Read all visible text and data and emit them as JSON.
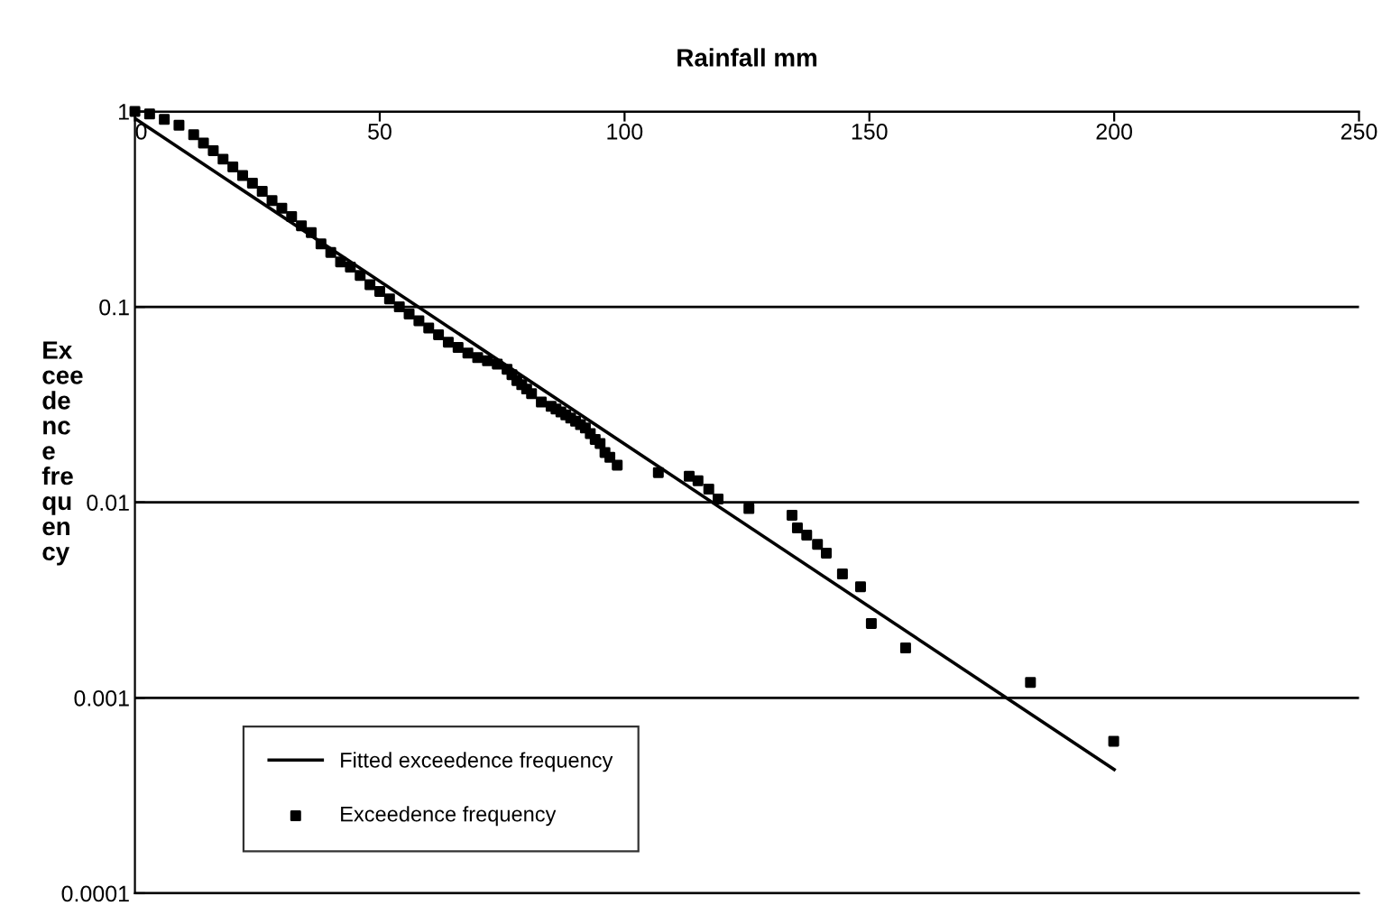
{
  "chart_data": {
    "type": "scatter",
    "xlabel": "Rainfall mm",
    "ylabel": "Ex\ncee\nde\nnc\ne\nfre\nqu\nen\ncy",
    "log": "y",
    "xlim": [
      0,
      250
    ],
    "xticks": [
      0,
      50,
      100,
      150,
      200,
      250
    ],
    "ylim": [
      0.0001,
      1
    ],
    "yticks": [
      0.0001,
      0.001,
      0.01,
      0.1,
      1
    ],
    "grid": "y",
    "legend": "bottom left",
    "series": [
      {
        "name": "Fitted exceedence frequency",
        "type": "line",
        "color": "#000000",
        "marker": "none",
        "line_style": "solid",
        "x": [
          0,
          200
        ],
        "values": [
          0.92,
          0.00043
        ]
      },
      {
        "name": "Exceedence frequency",
        "color": "#000000",
        "marker": "square",
        "x": [
          0,
          3,
          6,
          9,
          12,
          14,
          16,
          18,
          20,
          22,
          24,
          26,
          28,
          30,
          32,
          34,
          36,
          38,
          40,
          42,
          44,
          46,
          48,
          50,
          52,
          54,
          56,
          58,
          60,
          62,
          64,
          66,
          68,
          70,
          72,
          74,
          76,
          77,
          78,
          79,
          80,
          81,
          83,
          85,
          86,
          87,
          88,
          89,
          90,
          91,
          92,
          93,
          94,
          95,
          96,
          97,
          98.5,
          106.9,
          113.2,
          115,
          117.2,
          119.1,
          125.4,
          134.2,
          135.3,
          137.2,
          139.4,
          141.2,
          144.5,
          148.2,
          150.4,
          157.4,
          182.9,
          199.9
        ],
        "values": [
          1,
          0.97,
          0.91,
          0.85,
          0.76,
          0.69,
          0.63,
          0.57,
          0.52,
          0.47,
          0.43,
          0.39,
          0.35,
          0.32,
          0.29,
          0.26,
          0.24,
          0.21,
          0.19,
          0.17,
          0.16,
          0.145,
          0.13,
          0.12,
          0.11,
          0.1,
          0.092,
          0.085,
          0.078,
          0.072,
          0.066,
          0.062,
          0.058,
          0.055,
          0.053,
          0.051,
          0.048,
          0.045,
          0.042,
          0.04,
          0.038,
          0.036,
          0.0326,
          0.031,
          0.03,
          0.029,
          0.028,
          0.027,
          0.026,
          0.025,
          0.024,
          0.0225,
          0.021,
          0.02,
          0.018,
          0.017,
          0.0155,
          0.0142,
          0.0136,
          0.0129,
          0.0117,
          0.0104,
          0.0093,
          0.0086,
          0.0074,
          0.0068,
          0.0061,
          0.0055,
          0.0043,
          0.0037,
          0.0024,
          0.0018,
          0.0012,
          0.0006
        ]
      }
    ]
  }
}
